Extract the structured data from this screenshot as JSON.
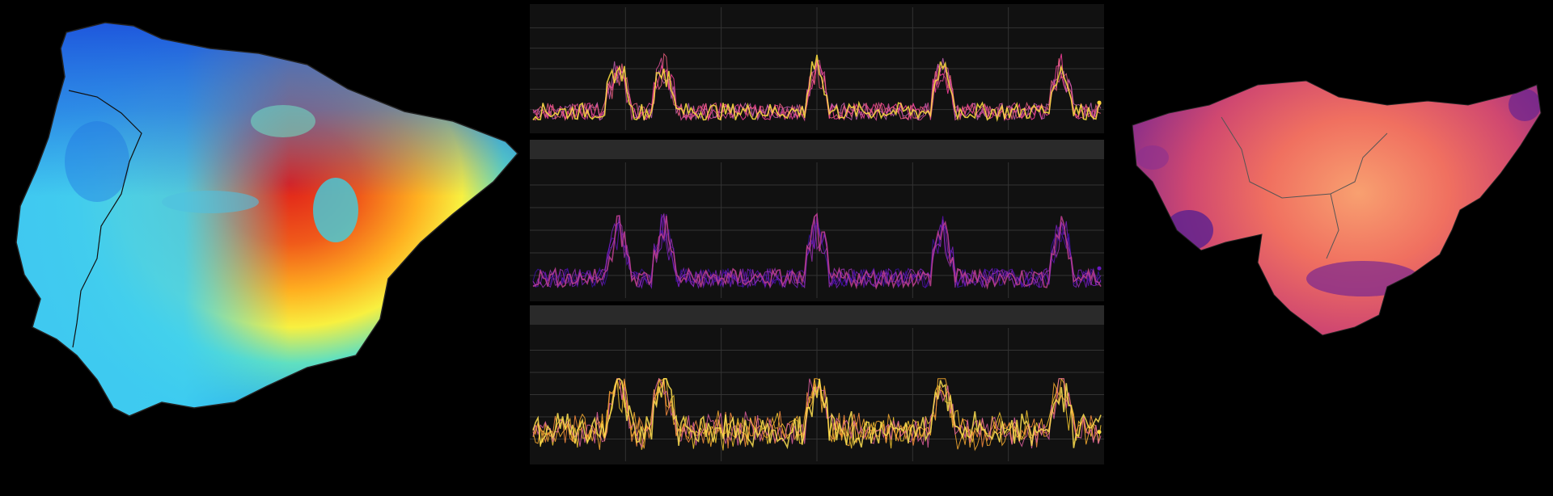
{
  "maps": {
    "left": {
      "region": "iberian-peninsula",
      "colormap": "jet",
      "icon": "map-heat-icon"
    },
    "right": {
      "region": "basque-country",
      "colormap": "plasma",
      "icon": "map-heat-icon"
    }
  },
  "panels": [
    {
      "id": "top",
      "line_colors": [
        "#ff3fa0",
        "#e0509a",
        "#c060b0",
        "#f06080",
        "#ffe040"
      ],
      "highlight": "#ffd43a"
    },
    {
      "id": "middle",
      "line_colors": [
        "#5a10b0",
        "#7a20c0",
        "#3a10a0",
        "#9a30b0",
        "#c04090"
      ],
      "highlight": "#6a18c0"
    },
    {
      "id": "bottom",
      "line_colors": [
        "#ffd030",
        "#ffb030",
        "#ff9040",
        "#e060a0",
        "#ffe050"
      ],
      "highlight": "#ffe040"
    }
  ],
  "colors": {
    "background": "#000000",
    "panel_bg": "#111111",
    "panel_header": "#2a2a2a",
    "grid": "#333333"
  }
}
